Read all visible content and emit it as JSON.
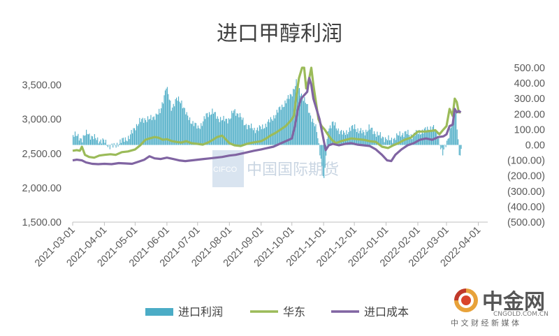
{
  "chart_data": {
    "type": "bar+line",
    "title": "进口甲醇利润",
    "xlabel": "",
    "ylabel": "",
    "x_start": "2021-03-01",
    "x_end": "2022-04-01",
    "x_tick_labels": [
      "2021-03-01",
      "2021-04-01",
      "2021-05-01",
      "2021-06-01",
      "2021-07-01",
      "2021-08-01",
      "2021-09-01",
      "2021-10-01",
      "2021-11-01",
      "2021-12-01",
      "2022-01-01",
      "2022-02-01",
      "2022-03-01",
      "2022-04-01"
    ],
    "y_left": {
      "range": [
        1500,
        3750
      ],
      "ticks": [
        1500,
        2000,
        2500,
        3000,
        3500
      ],
      "tick_labels": [
        "1,500.00",
        "2,000.00",
        "2,500.00",
        "3,000.00",
        "3,500.00"
      ]
    },
    "y_right": {
      "range": [
        -500,
        500
      ],
      "ticks": [
        -500,
        -400,
        -300,
        -200,
        -100,
        0,
        100,
        200,
        300,
        400,
        500
      ],
      "tick_labels": [
        "(500.00)",
        "(400.00)",
        "(300.00)",
        "(200.00)",
        "(100.00)",
        "0.00",
        "100.00",
        "200.00",
        "300.00",
        "400.00",
        "500.00"
      ]
    },
    "grid": false,
    "legend_position": "bottom",
    "series": [
      {
        "name": "进口利润",
        "type": "bar",
        "axis": "right",
        "color": "#4bacc6",
        "points": [
          [
            "2021-03-01",
            70
          ],
          [
            "2021-03-05",
            55
          ],
          [
            "2021-03-10",
            40
          ],
          [
            "2021-03-15",
            80
          ],
          [
            "2021-03-20",
            50
          ],
          [
            "2021-03-25",
            35
          ],
          [
            "2021-04-01",
            20
          ],
          [
            "2021-04-05",
            -5
          ],
          [
            "2021-04-10",
            -10
          ],
          [
            "2021-04-15",
            15
          ],
          [
            "2021-04-20",
            35
          ],
          [
            "2021-04-25",
            50
          ],
          [
            "2021-05-01",
            120
          ],
          [
            "2021-05-05",
            150
          ],
          [
            "2021-05-10",
            170
          ],
          [
            "2021-05-15",
            165
          ],
          [
            "2021-05-20",
            190
          ],
          [
            "2021-05-25",
            210
          ],
          [
            "2021-05-31",
            380
          ],
          [
            "2021-06-05",
            240
          ],
          [
            "2021-06-10",
            295
          ],
          [
            "2021-06-15",
            280
          ],
          [
            "2021-06-20",
            190
          ],
          [
            "2021-06-25",
            150
          ],
          [
            "2021-07-01",
            110
          ],
          [
            "2021-07-05",
            140
          ],
          [
            "2021-07-10",
            200
          ],
          [
            "2021-07-15",
            215
          ],
          [
            "2021-07-20",
            180
          ],
          [
            "2021-07-25",
            160
          ],
          [
            "2021-08-01",
            170
          ],
          [
            "2021-08-05",
            220
          ],
          [
            "2021-08-10",
            200
          ],
          [
            "2021-08-15",
            140
          ],
          [
            "2021-08-20",
            120
          ],
          [
            "2021-08-25",
            100
          ],
          [
            "2021-09-01",
            110
          ],
          [
            "2021-09-05",
            130
          ],
          [
            "2021-09-10",
            160
          ],
          [
            "2021-09-15",
            200
          ],
          [
            "2021-09-20",
            245
          ],
          [
            "2021-09-25",
            280
          ],
          [
            "2021-10-01",
            340
          ],
          [
            "2021-10-05",
            400
          ],
          [
            "2021-10-10",
            330
          ],
          [
            "2021-10-15",
            260
          ],
          [
            "2021-10-20",
            175
          ],
          [
            "2021-10-25",
            90
          ],
          [
            "2021-10-28",
            -40
          ],
          [
            "2021-11-01",
            -240
          ],
          [
            "2021-11-05",
            110
          ],
          [
            "2021-11-10",
            140
          ],
          [
            "2021-11-15",
            100
          ],
          [
            "2021-11-20",
            70
          ],
          [
            "2021-11-25",
            95
          ],
          [
            "2021-12-01",
            120
          ],
          [
            "2021-12-05",
            90
          ],
          [
            "2021-12-10",
            80
          ],
          [
            "2021-12-15",
            110
          ],
          [
            "2021-12-20",
            85
          ],
          [
            "2021-12-25",
            60
          ],
          [
            "2022-01-01",
            40
          ],
          [
            "2022-01-05",
            30
          ],
          [
            "2022-01-10",
            50
          ],
          [
            "2022-01-15",
            70
          ],
          [
            "2022-01-20",
            80
          ],
          [
            "2022-01-25",
            60
          ],
          [
            "2022-02-01",
            80
          ],
          [
            "2022-02-05",
            90
          ],
          [
            "2022-02-10",
            100
          ],
          [
            "2022-02-15",
            120
          ],
          [
            "2022-02-20",
            60
          ],
          [
            "2022-02-25",
            -60
          ],
          [
            "2022-03-01",
            20
          ],
          [
            "2022-03-05",
            120
          ],
          [
            "2022-03-10",
            220
          ],
          [
            "2022-03-13",
            -60
          ],
          [
            "2022-03-15",
            -50
          ]
        ]
      },
      {
        "name": "华东",
        "type": "line",
        "axis": "left",
        "color": "#9bbb59",
        "points": [
          [
            "2021-03-01",
            2540
          ],
          [
            "2021-03-05",
            2550
          ],
          [
            "2021-03-08",
            2540
          ],
          [
            "2021-03-10",
            2600
          ],
          [
            "2021-03-13",
            2480
          ],
          [
            "2021-03-17",
            2450
          ],
          [
            "2021-03-22",
            2440
          ],
          [
            "2021-03-27",
            2470
          ],
          [
            "2021-04-01",
            2480
          ],
          [
            "2021-04-07",
            2490
          ],
          [
            "2021-04-12",
            2480
          ],
          [
            "2021-04-18",
            2520
          ],
          [
            "2021-04-24",
            2530
          ],
          [
            "2021-05-01",
            2560
          ],
          [
            "2021-05-06",
            2620
          ],
          [
            "2021-05-11",
            2700
          ],
          [
            "2021-05-15",
            2720
          ],
          [
            "2021-05-20",
            2740
          ],
          [
            "2021-05-24",
            2730
          ],
          [
            "2021-05-28",
            2700
          ],
          [
            "2021-06-01",
            2710
          ],
          [
            "2021-06-06",
            2680
          ],
          [
            "2021-06-10",
            2670
          ],
          [
            "2021-06-15",
            2660
          ],
          [
            "2021-06-20",
            2680
          ],
          [
            "2021-06-25",
            2650
          ],
          [
            "2021-07-01",
            2640
          ],
          [
            "2021-07-06",
            2630
          ],
          [
            "2021-07-11",
            2660
          ],
          [
            "2021-07-16",
            2700
          ],
          [
            "2021-07-20",
            2740
          ],
          [
            "2021-07-25",
            2760
          ],
          [
            "2021-08-01",
            2650
          ],
          [
            "2021-08-06",
            2620
          ],
          [
            "2021-08-12",
            2610
          ],
          [
            "2021-08-18",
            2640
          ],
          [
            "2021-08-24",
            2660
          ],
          [
            "2021-09-01",
            2680
          ],
          [
            "2021-09-06",
            2720
          ],
          [
            "2021-09-10",
            2760
          ],
          [
            "2021-09-15",
            2800
          ],
          [
            "2021-09-20",
            2850
          ],
          [
            "2021-09-25",
            2900
          ],
          [
            "2021-09-30",
            2980
          ],
          [
            "2021-10-03",
            3050
          ],
          [
            "2021-10-06",
            3400
          ],
          [
            "2021-10-08",
            3600
          ],
          [
            "2021-10-11",
            3750
          ],
          [
            "2021-10-13",
            3750
          ],
          [
            "2021-10-15",
            3450
          ],
          [
            "2021-10-18",
            3600
          ],
          [
            "2021-10-20",
            3750
          ],
          [
            "2021-10-22",
            3500
          ],
          [
            "2021-10-24",
            3300
          ],
          [
            "2021-10-27",
            3000
          ],
          [
            "2021-10-30",
            2900
          ],
          [
            "2021-11-02",
            2850
          ],
          [
            "2021-11-05",
            2780
          ],
          [
            "2021-11-09",
            2700
          ],
          [
            "2021-11-13",
            2650
          ],
          [
            "2021-11-18",
            2680
          ],
          [
            "2021-11-23",
            2700
          ],
          [
            "2021-11-28",
            2720
          ],
          [
            "2021-12-04",
            2710
          ],
          [
            "2021-12-10",
            2700
          ],
          [
            "2021-12-16",
            2680
          ],
          [
            "2021-12-22",
            2670
          ],
          [
            "2021-12-28",
            2600
          ],
          [
            "2022-01-03",
            2580
          ],
          [
            "2022-01-08",
            2620
          ],
          [
            "2022-01-13",
            2650
          ],
          [
            "2022-01-19",
            2700
          ],
          [
            "2022-01-25",
            2730
          ],
          [
            "2022-02-01",
            2820
          ],
          [
            "2022-02-08",
            2820
          ],
          [
            "2022-02-14",
            2830
          ],
          [
            "2022-02-18",
            2840
          ],
          [
            "2022-02-22",
            2780
          ],
          [
            "2022-02-26",
            2850
          ],
          [
            "2022-03-01",
            2900
          ],
          [
            "2022-03-04",
            3150
          ],
          [
            "2022-03-07",
            3050
          ],
          [
            "2022-03-09",
            3300
          ],
          [
            "2022-03-11",
            3250
          ],
          [
            "2022-03-13",
            3100
          ],
          [
            "2022-03-15",
            3100
          ]
        ]
      },
      {
        "name": "进口成本",
        "type": "line",
        "axis": "left",
        "color": "#8064a2",
        "points": [
          [
            "2021-03-01",
            2400
          ],
          [
            "2021-03-05",
            2410
          ],
          [
            "2021-03-10",
            2400
          ],
          [
            "2021-03-14",
            2370
          ],
          [
            "2021-03-20",
            2350
          ],
          [
            "2021-03-26",
            2345
          ],
          [
            "2021-04-01",
            2350
          ],
          [
            "2021-04-08",
            2345
          ],
          [
            "2021-04-15",
            2360
          ],
          [
            "2021-04-22",
            2355
          ],
          [
            "2021-04-28",
            2350
          ],
          [
            "2021-05-04",
            2380
          ],
          [
            "2021-05-10",
            2410
          ],
          [
            "2021-05-15",
            2460
          ],
          [
            "2021-05-20",
            2430
          ],
          [
            "2021-05-26",
            2420
          ],
          [
            "2021-06-01",
            2440
          ],
          [
            "2021-06-07",
            2420
          ],
          [
            "2021-06-13",
            2400
          ],
          [
            "2021-06-19",
            2390
          ],
          [
            "2021-06-25",
            2400
          ],
          [
            "2021-07-01",
            2410
          ],
          [
            "2021-07-07",
            2420
          ],
          [
            "2021-07-13",
            2430
          ],
          [
            "2021-07-19",
            2440
          ],
          [
            "2021-07-25",
            2450
          ],
          [
            "2021-08-01",
            2470
          ],
          [
            "2021-08-07",
            2480
          ],
          [
            "2021-08-13",
            2500
          ],
          [
            "2021-08-19",
            2520
          ],
          [
            "2021-08-25",
            2540
          ],
          [
            "2021-09-01",
            2560
          ],
          [
            "2021-09-07",
            2580
          ],
          [
            "2021-09-13",
            2600
          ],
          [
            "2021-09-19",
            2640
          ],
          [
            "2021-09-25",
            2680
          ],
          [
            "2021-10-01",
            2720
          ],
          [
            "2021-10-04",
            2900
          ],
          [
            "2021-10-07",
            3150
          ],
          [
            "2021-10-10",
            3300
          ],
          [
            "2021-10-13",
            3350
          ],
          [
            "2021-10-16",
            3400
          ],
          [
            "2021-10-18",
            3600
          ],
          [
            "2021-10-20",
            3500
          ],
          [
            "2021-10-22",
            3300
          ],
          [
            "2021-10-25",
            3150
          ],
          [
            "2021-10-28",
            3000
          ],
          [
            "2021-11-01",
            2700
          ],
          [
            "2021-11-03",
            2550
          ],
          [
            "2021-11-06",
            2620
          ],
          [
            "2021-11-10",
            2640
          ],
          [
            "2021-11-16",
            2620
          ],
          [
            "2021-11-22",
            2640
          ],
          [
            "2021-11-28",
            2650
          ],
          [
            "2021-12-04",
            2630
          ],
          [
            "2021-12-10",
            2620
          ],
          [
            "2021-12-16",
            2610
          ],
          [
            "2021-12-22",
            2560
          ],
          [
            "2021-12-28",
            2480
          ],
          [
            "2022-01-02",
            2400
          ],
          [
            "2022-01-06",
            2390
          ],
          [
            "2022-01-10",
            2480
          ],
          [
            "2022-01-16",
            2560
          ],
          [
            "2022-01-22",
            2620
          ],
          [
            "2022-01-28",
            2650
          ],
          [
            "2022-02-03",
            2700
          ],
          [
            "2022-02-09",
            2720
          ],
          [
            "2022-02-15",
            2700
          ],
          [
            "2022-02-21",
            2740
          ],
          [
            "2022-02-26",
            2750
          ],
          [
            "2022-03-01",
            2780
          ],
          [
            "2022-03-04",
            2900
          ],
          [
            "2022-03-07",
            2920
          ],
          [
            "2022-03-09",
            3150
          ],
          [
            "2022-03-11",
            3100
          ],
          [
            "2022-03-13",
            3120
          ],
          [
            "2022-03-15",
            3100
          ]
        ]
      }
    ]
  },
  "legend": [
    {
      "label": "进口利润",
      "color": "#4bacc6",
      "shape": "bar"
    },
    {
      "label": "华东",
      "color": "#9bbb59",
      "shape": "line"
    },
    {
      "label": "进口成本",
      "color": "#8064a2",
      "shape": "line"
    }
  ],
  "watermark": {
    "logo_text": "CIFCO",
    "text": "中国国际期货"
  },
  "brand": {
    "name": "中金网",
    "tagline": "中 文 财 经 新 媒 体",
    "url": "CNGOLD.COM.CN"
  }
}
